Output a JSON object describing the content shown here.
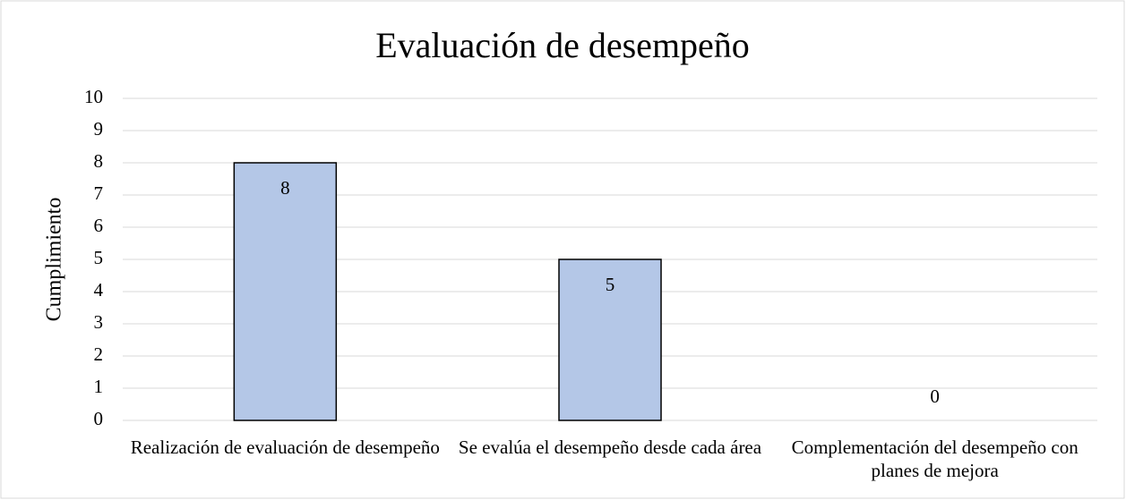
{
  "chart_data": {
    "type": "bar",
    "title": "Evaluación de desempeño",
    "y_label": "Cumplimiento",
    "categories": [
      "Realización de evaluación de desempeño",
      "Se evalúa el desempeño desde cada área",
      "Complementación del desempeño con planes de mejora"
    ],
    "values": [
      8,
      5,
      0
    ],
    "color": "#b4c7e7",
    "ylim": [
      0,
      10
    ],
    "yticks": [
      0,
      1,
      2,
      3,
      4,
      5,
      6,
      7,
      8,
      9,
      10
    ],
    "grid": true
  }
}
